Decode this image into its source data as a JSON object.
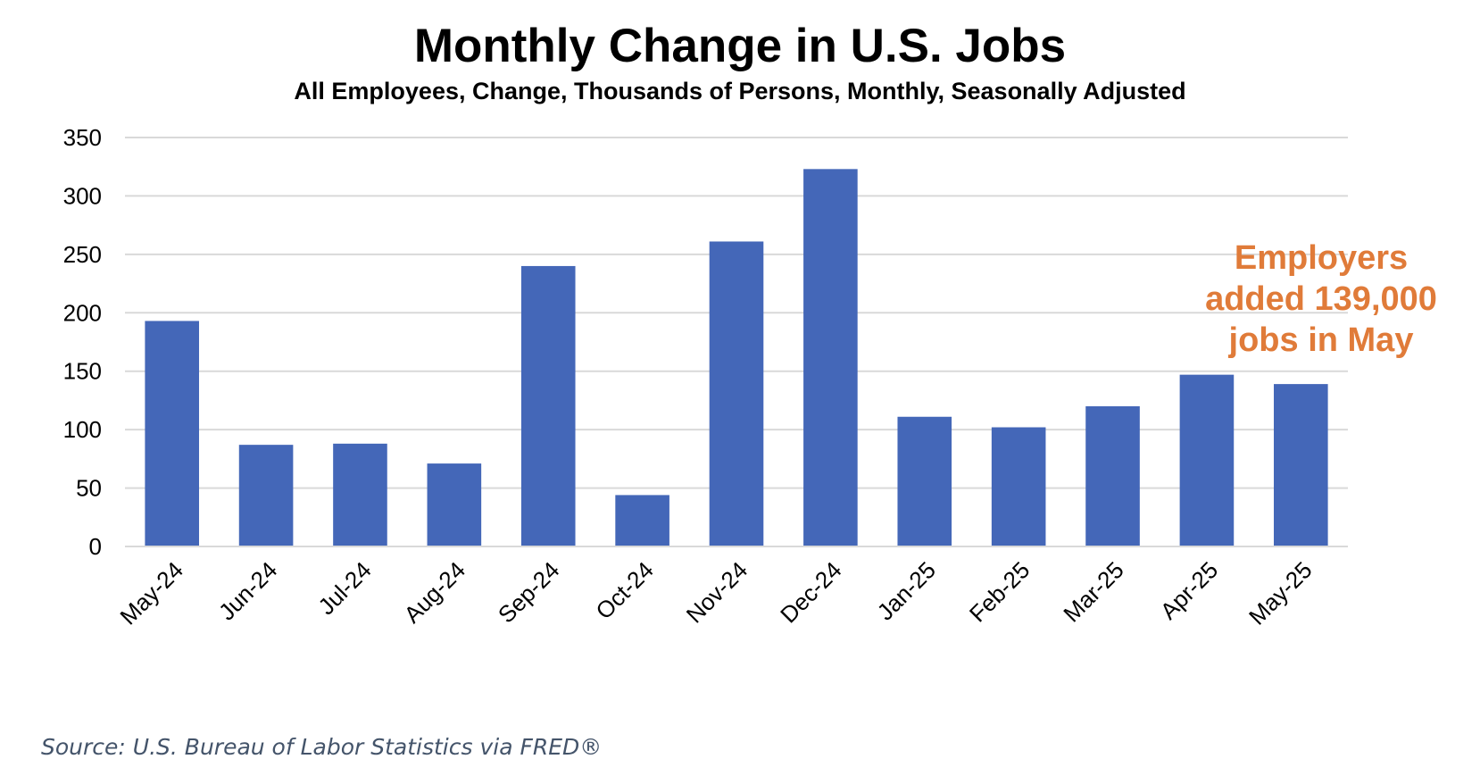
{
  "chart_data": {
    "type": "bar",
    "title": "Monthly Change in U.S. Jobs",
    "subtitle": "All Employees, Change, Thousands of Persons, Monthly, Seasonally Adjusted",
    "categories": [
      "May-24",
      "Jun-24",
      "Jul-24",
      "Aug-24",
      "Sep-24",
      "Oct-24",
      "Nov-24",
      "Dec-24",
      "Jan-25",
      "Feb-25",
      "Mar-25",
      "Apr-25",
      "May-25"
    ],
    "values": [
      193,
      87,
      88,
      71,
      240,
      44,
      261,
      323,
      111,
      102,
      120,
      147,
      139
    ],
    "ylim": [
      0,
      350
    ],
    "yticks": [
      0,
      50,
      100,
      150,
      200,
      250,
      300,
      350
    ],
    "grid": true,
    "bar_color": "#4467b8",
    "annotation": {
      "lines": [
        "Employers",
        "added 139,000",
        "jobs in May"
      ],
      "color": "#e07b39"
    },
    "source": "Source: U.S. Bureau of Labor Statistics via FRED®"
  }
}
